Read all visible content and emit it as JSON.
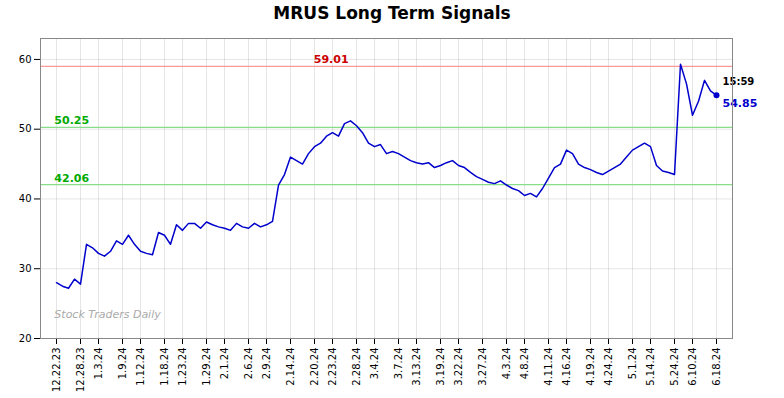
{
  "chart_data": {
    "type": "line",
    "title": "MRUS Long Term Signals",
    "categories": [
      "12.22.23",
      null,
      null,
      null,
      "12.28.23",
      null,
      null,
      "1.3.24",
      null,
      null,
      null,
      "1.9.24",
      null,
      null,
      "1.12.24",
      null,
      null,
      null,
      "1.18.24",
      null,
      null,
      "1.23.24",
      null,
      null,
      null,
      "1.29.24",
      null,
      null,
      "2.1.24",
      null,
      null,
      null,
      "2.6.24",
      null,
      null,
      "2.9.24",
      null,
      null,
      null,
      "2.14.24",
      null,
      null,
      null,
      "2.20.24",
      null,
      null,
      "2.23.24",
      null,
      null,
      null,
      "2.28.24",
      null,
      null,
      "3.4.24",
      null,
      null,
      null,
      "3.7.24",
      null,
      null,
      "3.13.24",
      null,
      null,
      null,
      "3.19.24",
      null,
      null,
      "3.22.24",
      null,
      null,
      null,
      "3.27.24",
      null,
      null,
      null,
      "4.3.24",
      null,
      null,
      "4.8.24",
      null,
      null,
      null,
      "4.11.24",
      null,
      null,
      "4.16.24",
      null,
      null,
      null,
      "4.19.24",
      null,
      null,
      "4.24.24",
      null,
      null,
      null,
      "5.1.24",
      null,
      null,
      "5.14.24",
      null,
      null,
      null,
      "5.24.24",
      null,
      null,
      "6.10.24",
      null,
      null,
      null,
      "6.18.24"
    ],
    "values": [
      28.0,
      27.5,
      27.2,
      28.5,
      27.8,
      33.5,
      33.0,
      32.2,
      31.8,
      32.5,
      34.0,
      33.5,
      34.8,
      33.5,
      32.5,
      32.2,
      32.0,
      35.2,
      34.8,
      33.5,
      36.3,
      35.5,
      36.5,
      36.5,
      35.8,
      36.7,
      36.3,
      36.0,
      35.8,
      35.5,
      36.5,
      36.0,
      35.8,
      36.5,
      36.0,
      36.3,
      36.8,
      42.0,
      43.5,
      46.0,
      45.5,
      45.0,
      46.5,
      47.5,
      48.0,
      49.0,
      49.5,
      49.0,
      50.8,
      51.2,
      50.5,
      49.5,
      48.0,
      47.5,
      47.8,
      46.5,
      46.8,
      46.5,
      46.0,
      45.5,
      45.2,
      45.0,
      45.2,
      44.5,
      44.8,
      45.2,
      45.5,
      44.8,
      44.5,
      43.8,
      43.2,
      42.8,
      42.4,
      42.2,
      42.6,
      42.0,
      41.5,
      41.2,
      40.5,
      40.8,
      40.3,
      41.5,
      43.0,
      44.5,
      45.0,
      47.0,
      46.5,
      45.0,
      44.5,
      44.2,
      43.8,
      43.5,
      44.0,
      44.5,
      45.0,
      46.0,
      47.0,
      47.5,
      48.0,
      47.5,
      44.8,
      44.0,
      43.8,
      43.5,
      59.3,
      56.5,
      52.0,
      54.0,
      57.0,
      55.5,
      54.85
    ],
    "color": "#0000cc",
    "ylim": [
      20,
      63
    ],
    "yticks": [
      20,
      30,
      40,
      50,
      60
    ],
    "grid": true,
    "reference_lines": [
      {
        "value": 59.01,
        "label": "59.01",
        "color": "#ff9999",
        "label_color": "#cc0000"
      },
      {
        "value": 50.25,
        "label": "50.25",
        "color": "#88dd88",
        "label_color": "#00aa00"
      },
      {
        "value": 42.06,
        "label": "42.06",
        "color": "#88dd88",
        "label_color": "#00aa00"
      }
    ],
    "watermark": "Stock Traders Daily",
    "watermark_color": "#aaaaaa",
    "last_point": {
      "time": "15:59",
      "price": 54.85
    }
  }
}
